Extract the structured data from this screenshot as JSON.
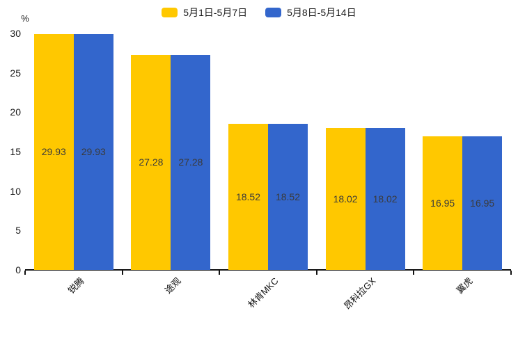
{
  "chart_data": {
    "type": "bar",
    "categories": [
      "锐腾",
      "途观",
      "林肯MKC",
      "昂科拉GX",
      "翼虎"
    ],
    "series": [
      {
        "name": "5月1日-5月7日",
        "color": "#FFC800",
        "values": [
          29.93,
          27.28,
          18.52,
          18.02,
          16.95
        ]
      },
      {
        "name": "5月8日-5月14日",
        "color": "#3366CC",
        "values": [
          29.93,
          27.28,
          18.52,
          18.02,
          16.95
        ]
      }
    ],
    "title": "",
    "xlabel": "",
    "ylabel": "%",
    "ylim": [
      0,
      30
    ],
    "yticks": [
      0,
      5,
      10,
      15,
      20,
      25,
      30
    ],
    "grid": false,
    "legend_position": "top",
    "value_labels_inside_bars": true,
    "value_label_color": "#3b3b3b",
    "axis_color": "#111111",
    "background_color": "#ffffff"
  }
}
